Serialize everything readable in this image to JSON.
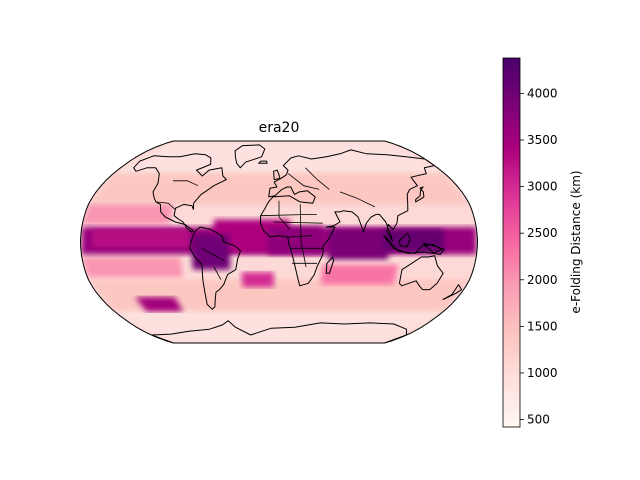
{
  "title": "era20",
  "colorbar": {
    "label": "e-Folding Distance (km)",
    "ticks": [
      "500",
      "1000",
      "1500",
      "2000",
      "2500",
      "3000",
      "3500",
      "4000"
    ],
    "tick_values": [
      500,
      1000,
      1500,
      2000,
      2500,
      3000,
      3500,
      4000
    ],
    "min": 420,
    "max": 4380,
    "colormap": [
      "#fff7f3",
      "#fde0dd",
      "#fcc5c0",
      "#fa9fb5",
      "#f768a1",
      "#dd3497",
      "#ae017e",
      "#7a0177",
      "#49006a"
    ]
  },
  "map": {
    "projection": "Robinson",
    "field": "e-folding distance",
    "colors": {
      "coastline": "#000000",
      "ocean_base": "#fcd9d6"
    }
  },
  "chart_data": {
    "type": "heatmap",
    "title": "era20",
    "colorbar_label": "e-Folding Distance (km)",
    "vmin": 420,
    "vmax": 4380,
    "regions": [
      {
        "name": "tropical band",
        "value": 3600
      },
      {
        "name": "indian ocean tropics",
        "value": 3900
      },
      {
        "name": "maritime continent",
        "value": 4100
      },
      {
        "name": "equatorial africa",
        "value": 3700
      },
      {
        "name": "tropical atlantic",
        "value": 3400
      },
      {
        "name": "eastern pacific tropics",
        "value": 3300
      },
      {
        "name": "amazon",
        "value": 4000
      },
      {
        "name": "south atlantic patch",
        "value": 3000
      },
      {
        "name": "south pacific patch",
        "value": 3500
      },
      {
        "name": "southern indian ocean",
        "value": 2300
      },
      {
        "name": "subtropical pacific",
        "value": 2000
      },
      {
        "name": "mid latitudes",
        "value": 1400
      },
      {
        "name": "high latitudes",
        "value": 900
      }
    ]
  }
}
